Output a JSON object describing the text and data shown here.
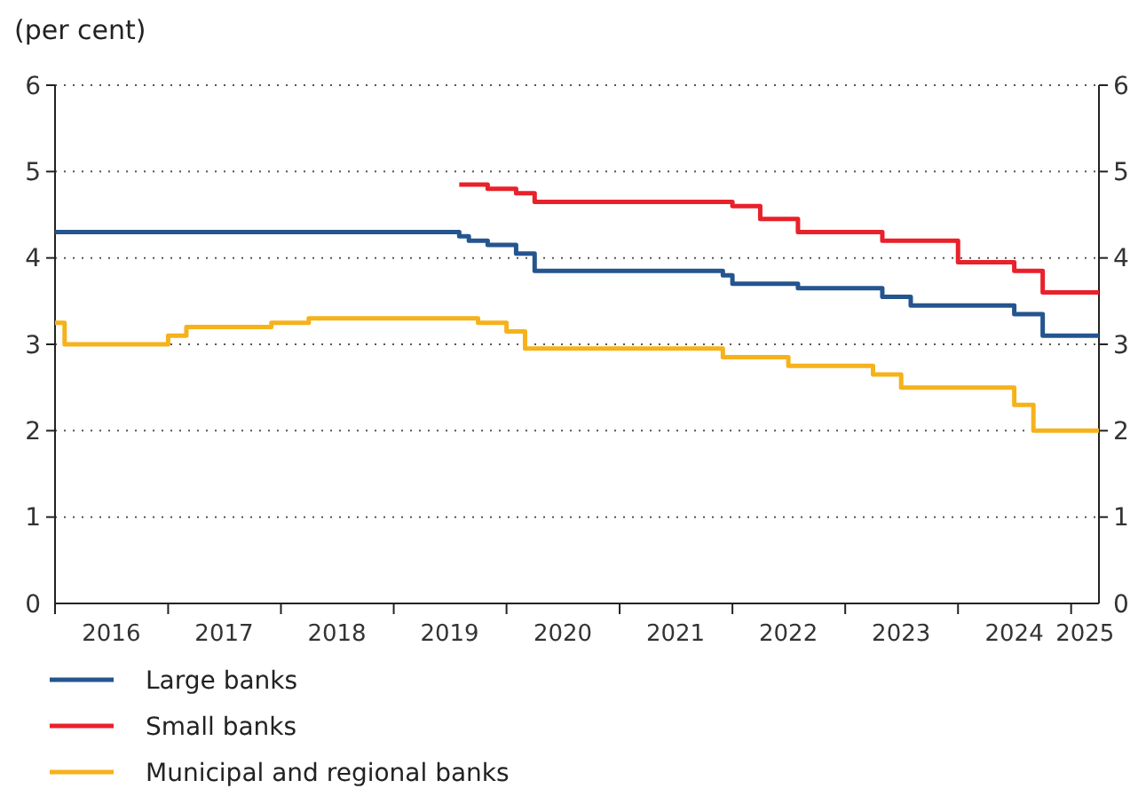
{
  "chart_data": {
    "type": "step",
    "ylabel": "(per cent)",
    "xlim": [
      "2016-01-01",
      "2025-04-01"
    ],
    "ylim": [
      0,
      6
    ],
    "yticks": [
      0,
      1,
      2,
      3,
      4,
      5,
      6
    ],
    "y2lim": [
      0,
      6
    ],
    "y2ticks": [
      0,
      1,
      2,
      3,
      4,
      5,
      6
    ],
    "xticks": [
      {
        "value": "2016-01-01",
        "label": null
      },
      {
        "value": "2016-07-01",
        "label": "2016"
      },
      {
        "value": "2017-01-01",
        "label": null
      },
      {
        "value": "2017-07-01",
        "label": "2017"
      },
      {
        "value": "2018-01-01",
        "label": null
      },
      {
        "value": "2018-07-01",
        "label": "2018"
      },
      {
        "value": "2019-01-01",
        "label": null
      },
      {
        "value": "2019-07-01",
        "label": "2019"
      },
      {
        "value": "2020-01-01",
        "label": null
      },
      {
        "value": "2020-07-01",
        "label": "2020"
      },
      {
        "value": "2021-01-01",
        "label": null
      },
      {
        "value": "2021-07-01",
        "label": "2021"
      },
      {
        "value": "2022-01-01",
        "label": null
      },
      {
        "value": "2022-07-01",
        "label": "2022"
      },
      {
        "value": "2023-01-01",
        "label": null
      },
      {
        "value": "2023-07-01",
        "label": "2023"
      },
      {
        "value": "2024-01-01",
        "label": null
      },
      {
        "value": "2024-07-01",
        "label": "2024"
      },
      {
        "value": "2025-01-01",
        "label": null
      },
      {
        "value": "2025-02-15",
        "label": "2025"
      }
    ],
    "grid": "y",
    "line_style": "solid",
    "legend": "bottom",
    "series": [
      {
        "name": "Large banks",
        "color": "#24558f",
        "x": [
          "2016-01-01",
          "2019-08-01",
          "2019-09-01",
          "2019-11-01",
          "2020-02-01",
          "2020-04-01",
          "2021-12-01",
          "2022-01-01",
          "2022-08-01",
          "2023-05-01",
          "2023-08-01",
          "2024-07-01",
          "2024-10-01",
          "2025-04-01"
        ],
        "values": [
          4.3,
          4.25,
          4.2,
          4.15,
          4.05,
          3.85,
          3.8,
          3.7,
          3.65,
          3.55,
          3.45,
          3.35,
          3.1,
          3.1
        ]
      },
      {
        "name": "Small banks",
        "color": "#e8212a",
        "x": [
          "2019-08-01",
          "2019-11-01",
          "2020-02-01",
          "2020-04-01",
          "2022-01-01",
          "2022-04-01",
          "2022-08-01",
          "2023-05-01",
          "2024-01-01",
          "2024-07-01",
          "2024-10-01",
          "2025-04-01"
        ],
        "values": [
          4.85,
          4.8,
          4.75,
          4.65,
          4.6,
          4.45,
          4.3,
          4.2,
          3.95,
          3.85,
          3.6,
          3.6
        ]
      },
      {
        "name": "Municipal and regional banks",
        "color": "#f5b21b",
        "x": [
          "2016-01-01",
          "2016-02-01",
          "2017-01-01",
          "2017-03-01",
          "2017-12-01",
          "2018-04-01",
          "2019-10-01",
          "2020-01-01",
          "2020-03-01",
          "2021-12-01",
          "2022-07-01",
          "2023-04-01",
          "2023-07-01",
          "2024-07-01",
          "2024-09-01",
          "2025-04-01"
        ],
        "values": [
          3.25,
          3.0,
          3.1,
          3.2,
          3.25,
          3.3,
          3.25,
          3.15,
          2.95,
          2.85,
          2.75,
          2.65,
          2.5,
          2.3,
          2.0,
          2.0
        ]
      }
    ]
  }
}
